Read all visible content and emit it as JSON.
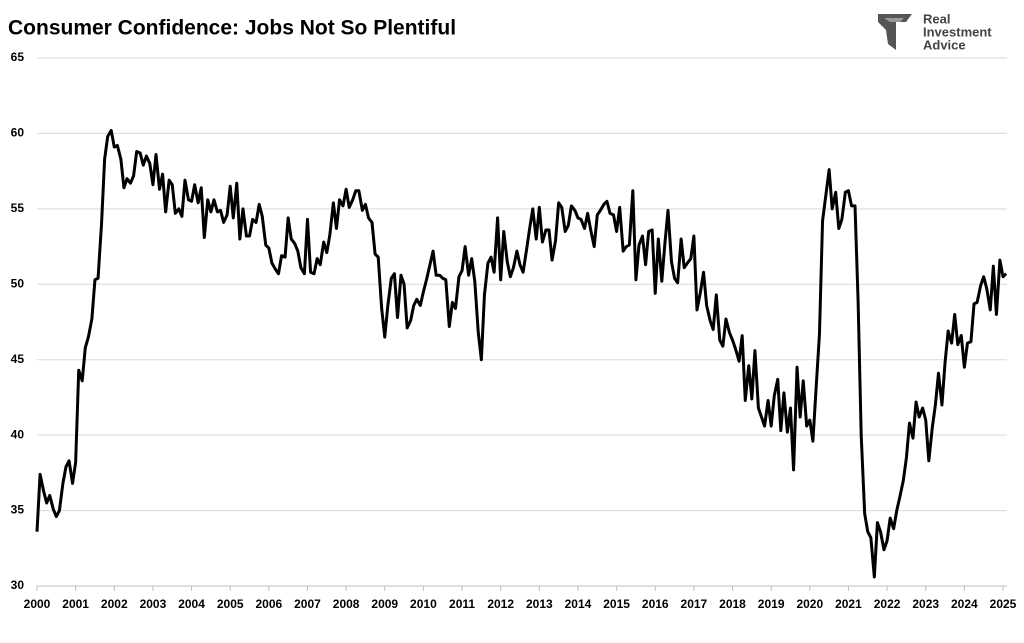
{
  "chart_data": {
    "type": "line",
    "title": "Consumer Confidence: Jobs Not So Plentiful",
    "logo": [
      "Real",
      "Investment",
      "Advice"
    ],
    "color": "#000000",
    "grid": true,
    "xlim": [
      2000,
      2025.15
    ],
    "ylim": [
      30,
      65
    ],
    "xticks": [
      2000,
      2001,
      2002,
      2003,
      2004,
      2005,
      2006,
      2007,
      2008,
      2009,
      2010,
      2011,
      2012,
      2013,
      2014,
      2015,
      2016,
      2017,
      2018,
      2019,
      2020,
      2021,
      2022,
      2023,
      2024,
      2025
    ],
    "yticks": [
      30,
      35,
      40,
      45,
      50,
      55,
      60,
      65
    ],
    "x": [
      2000,
      2000.08,
      2000.17,
      2000.25,
      2000.33,
      2000.42,
      2000.5,
      2000.58,
      2000.67,
      2000.75,
      2000.83,
      2000.92,
      2001,
      2001.08,
      2001.17,
      2001.25,
      2001.33,
      2001.42,
      2001.5,
      2001.58,
      2001.67,
      2001.75,
      2001.83,
      2001.92,
      2002,
      2002.08,
      2002.17,
      2002.25,
      2002.33,
      2002.42,
      2002.5,
      2002.58,
      2002.67,
      2002.75,
      2002.83,
      2002.92,
      2003,
      2003.08,
      2003.17,
      2003.25,
      2003.33,
      2003.42,
      2003.5,
      2003.58,
      2003.67,
      2003.75,
      2003.83,
      2003.92,
      2004,
      2004.08,
      2004.17,
      2004.25,
      2004.33,
      2004.42,
      2004.5,
      2004.58,
      2004.67,
      2004.75,
      2004.83,
      2004.92,
      2005,
      2005.08,
      2005.17,
      2005.25,
      2005.33,
      2005.42,
      2005.5,
      2005.58,
      2005.67,
      2005.75,
      2005.83,
      2005.92,
      2006,
      2006.08,
      2006.17,
      2006.25,
      2006.33,
      2006.42,
      2006.5,
      2006.58,
      2006.67,
      2006.75,
      2006.83,
      2006.92,
      2007,
      2007.08,
      2007.17,
      2007.25,
      2007.33,
      2007.42,
      2007.5,
      2007.58,
      2007.67,
      2007.75,
      2007.83,
      2007.92,
      2008,
      2008.08,
      2008.17,
      2008.25,
      2008.33,
      2008.42,
      2008.5,
      2008.58,
      2008.67,
      2008.75,
      2008.83,
      2008.92,
      2009,
      2009.08,
      2009.17,
      2009.25,
      2009.33,
      2009.42,
      2009.5,
      2009.58,
      2009.67,
      2009.75,
      2009.83,
      2009.92,
      2010,
      2010.08,
      2010.17,
      2010.25,
      2010.33,
      2010.42,
      2010.5,
      2010.58,
      2010.67,
      2010.75,
      2010.83,
      2010.92,
      2011,
      2011.08,
      2011.17,
      2011.25,
      2011.33,
      2011.42,
      2011.5,
      2011.58,
      2011.67,
      2011.75,
      2011.83,
      2011.92,
      2012,
      2012.08,
      2012.17,
      2012.25,
      2012.33,
      2012.42,
      2012.5,
      2012.58,
      2012.67,
      2012.75,
      2012.83,
      2012.92,
      2013,
      2013.08,
      2013.17,
      2013.25,
      2013.33,
      2013.42,
      2013.5,
      2013.58,
      2013.67,
      2013.75,
      2013.83,
      2013.92,
      2014,
      2014.08,
      2014.17,
      2014.25,
      2014.33,
      2014.42,
      2014.5,
      2014.58,
      2014.67,
      2014.75,
      2014.83,
      2014.92,
      2015,
      2015.08,
      2015.17,
      2015.25,
      2015.33,
      2015.42,
      2015.5,
      2015.58,
      2015.67,
      2015.75,
      2015.83,
      2015.92,
      2016,
      2016.08,
      2016.17,
      2016.25,
      2016.33,
      2016.42,
      2016.5,
      2016.58,
      2016.67,
      2016.75,
      2016.83,
      2016.92,
      2017,
      2017.08,
      2017.17,
      2017.25,
      2017.33,
      2017.42,
      2017.5,
      2017.58,
      2017.67,
      2017.75,
      2017.83,
      2017.92,
      2018,
      2018.08,
      2018.17,
      2018.25,
      2018.33,
      2018.42,
      2018.5,
      2018.58,
      2018.67,
      2018.75,
      2018.83,
      2018.92,
      2019,
      2019.08,
      2019.17,
      2019.25,
      2019.33,
      2019.42,
      2019.5,
      2019.58,
      2019.67,
      2019.75,
      2019.83,
      2019.92,
      2020,
      2020.08,
      2020.17,
      2020.25,
      2020.33,
      2020.42,
      2020.5,
      2020.58,
      2020.67,
      2020.75,
      2020.83,
      2020.92,
      2021,
      2021.08,
      2021.17,
      2021.25,
      2021.33,
      2021.42,
      2021.5,
      2021.58,
      2021.67,
      2021.75,
      2021.83,
      2021.92,
      2022,
      2022.08,
      2022.17,
      2022.25,
      2022.33,
      2022.42,
      2022.5,
      2022.58,
      2022.67,
      2022.75,
      2022.83,
      2022.92,
      2023,
      2023.08,
      2023.17,
      2023.25,
      2023.33,
      2023.42,
      2023.5,
      2023.58,
      2023.67,
      2023.75,
      2023.83,
      2023.92,
      2024,
      2024.08,
      2024.17,
      2024.25,
      2024.33,
      2024.42,
      2024.5,
      2024.58,
      2024.67,
      2024.75,
      2024.83,
      2024.92,
      2025,
      2025.08
    ],
    "values": [
      33.6,
      37.4,
      36.3,
      35.5,
      36.0,
      35.1,
      34.6,
      35.0,
      36.8,
      37.9,
      38.3,
      36.8,
      38.2,
      44.3,
      43.6,
      45.8,
      46.5,
      47.7,
      50.3,
      50.4,
      54.0,
      58.3,
      59.8,
      60.2,
      59.1,
      59.2,
      58.3,
      56.4,
      57.0,
      56.7,
      57.2,
      58.8,
      58.7,
      57.9,
      58.5,
      58.0,
      56.6,
      58.6,
      56.3,
      57.3,
      54.8,
      56.9,
      56.6,
      54.7,
      55.0,
      54.5,
      56.9,
      55.6,
      55.5,
      56.6,
      55.4,
      56.4,
      53.1,
      55.6,
      54.8,
      55.6,
      54.8,
      54.9,
      54.1,
      54.6,
      56.5,
      54.4,
      56.7,
      53.0,
      55.0,
      53.2,
      53.2,
      54.3,
      54.1,
      55.3,
      54.5,
      52.6,
      52.4,
      51.4,
      51.0,
      50.7,
      51.9,
      51.8,
      54.4,
      53.0,
      52.7,
      52.2,
      51.1,
      50.7,
      54.3,
      50.8,
      50.7,
      51.7,
      51.3,
      52.8,
      52.1,
      53.3,
      55.4,
      53.7,
      55.6,
      55.2,
      56.3,
      55.1,
      55.6,
      56.2,
      56.2,
      54.9,
      55.3,
      54.4,
      54.1,
      52.0,
      51.8,
      48.4,
      46.5,
      48.6,
      50.4,
      50.7,
      47.8,
      50.6,
      50.0,
      47.1,
      47.6,
      48.6,
      49.0,
      48.6,
      49.5,
      50.3,
      51.3,
      52.2,
      50.6,
      50.6,
      50.4,
      50.3,
      47.2,
      48.8,
      48.4,
      50.5,
      50.9,
      52.5,
      50.6,
      51.7,
      50.2,
      46.8,
      45.0,
      49.3,
      51.4,
      51.8,
      50.8,
      54.4,
      50.3,
      53.5,
      51.5,
      50.5,
      51.1,
      52.2,
      51.3,
      50.8,
      52.3,
      53.7,
      55.0,
      53.0,
      55.1,
      52.8,
      53.6,
      53.6,
      51.6,
      52.9,
      55.4,
      55.1,
      53.5,
      53.9,
      55.2,
      54.9,
      54.4,
      54.3,
      53.7,
      54.7,
      53.6,
      52.5,
      54.6,
      54.9,
      55.3,
      55.5,
      54.7,
      54.6,
      53.5,
      55.1,
      52.2,
      52.5,
      52.6,
      56.2,
      50.3,
      52.6,
      53.2,
      51.3,
      53.5,
      53.6,
      49.4,
      53.0,
      50.2,
      52.7,
      54.9,
      51.5,
      50.4,
      50.1,
      53.0,
      51.1,
      51.4,
      51.7,
      53.2,
      48.3,
      49.5,
      50.8,
      48.6,
      47.6,
      47.0,
      49.3,
      46.3,
      45.9,
      47.7,
      46.8,
      46.3,
      45.7,
      44.9,
      46.6,
      42.3,
      44.6,
      42.4,
      45.6,
      41.8,
      41.2,
      40.6,
      42.3,
      40.6,
      42.6,
      43.7,
      40.3,
      42.8,
      40.2,
      41.8,
      37.7,
      44.5,
      41.2,
      43.6,
      40.6,
      41.0,
      39.6,
      43.4,
      46.7,
      54.2,
      56.0,
      57.6,
      55.0,
      56.1,
      53.7,
      54.3,
      56.1,
      56.2,
      55.2,
      55.2,
      48.9,
      40.0,
      34.8,
      33.6,
      33.2,
      30.6,
      34.2,
      33.6,
      32.4,
      33.0,
      34.5,
      33.8,
      35.0,
      35.9,
      37.0,
      38.5,
      40.8,
      39.8,
      42.2,
      41.2,
      41.8,
      41.0,
      38.3,
      40.5,
      42.0,
      44.1,
      42.0,
      44.8,
      46.9,
      46.1,
      48.0,
      46.0,
      46.6,
      44.5,
      46.1,
      46.2,
      48.7,
      48.8,
      49.9,
      50.5,
      49.7,
      48.3,
      51.2,
      48.0,
      51.6,
      50.5,
      50.7
    ]
  }
}
